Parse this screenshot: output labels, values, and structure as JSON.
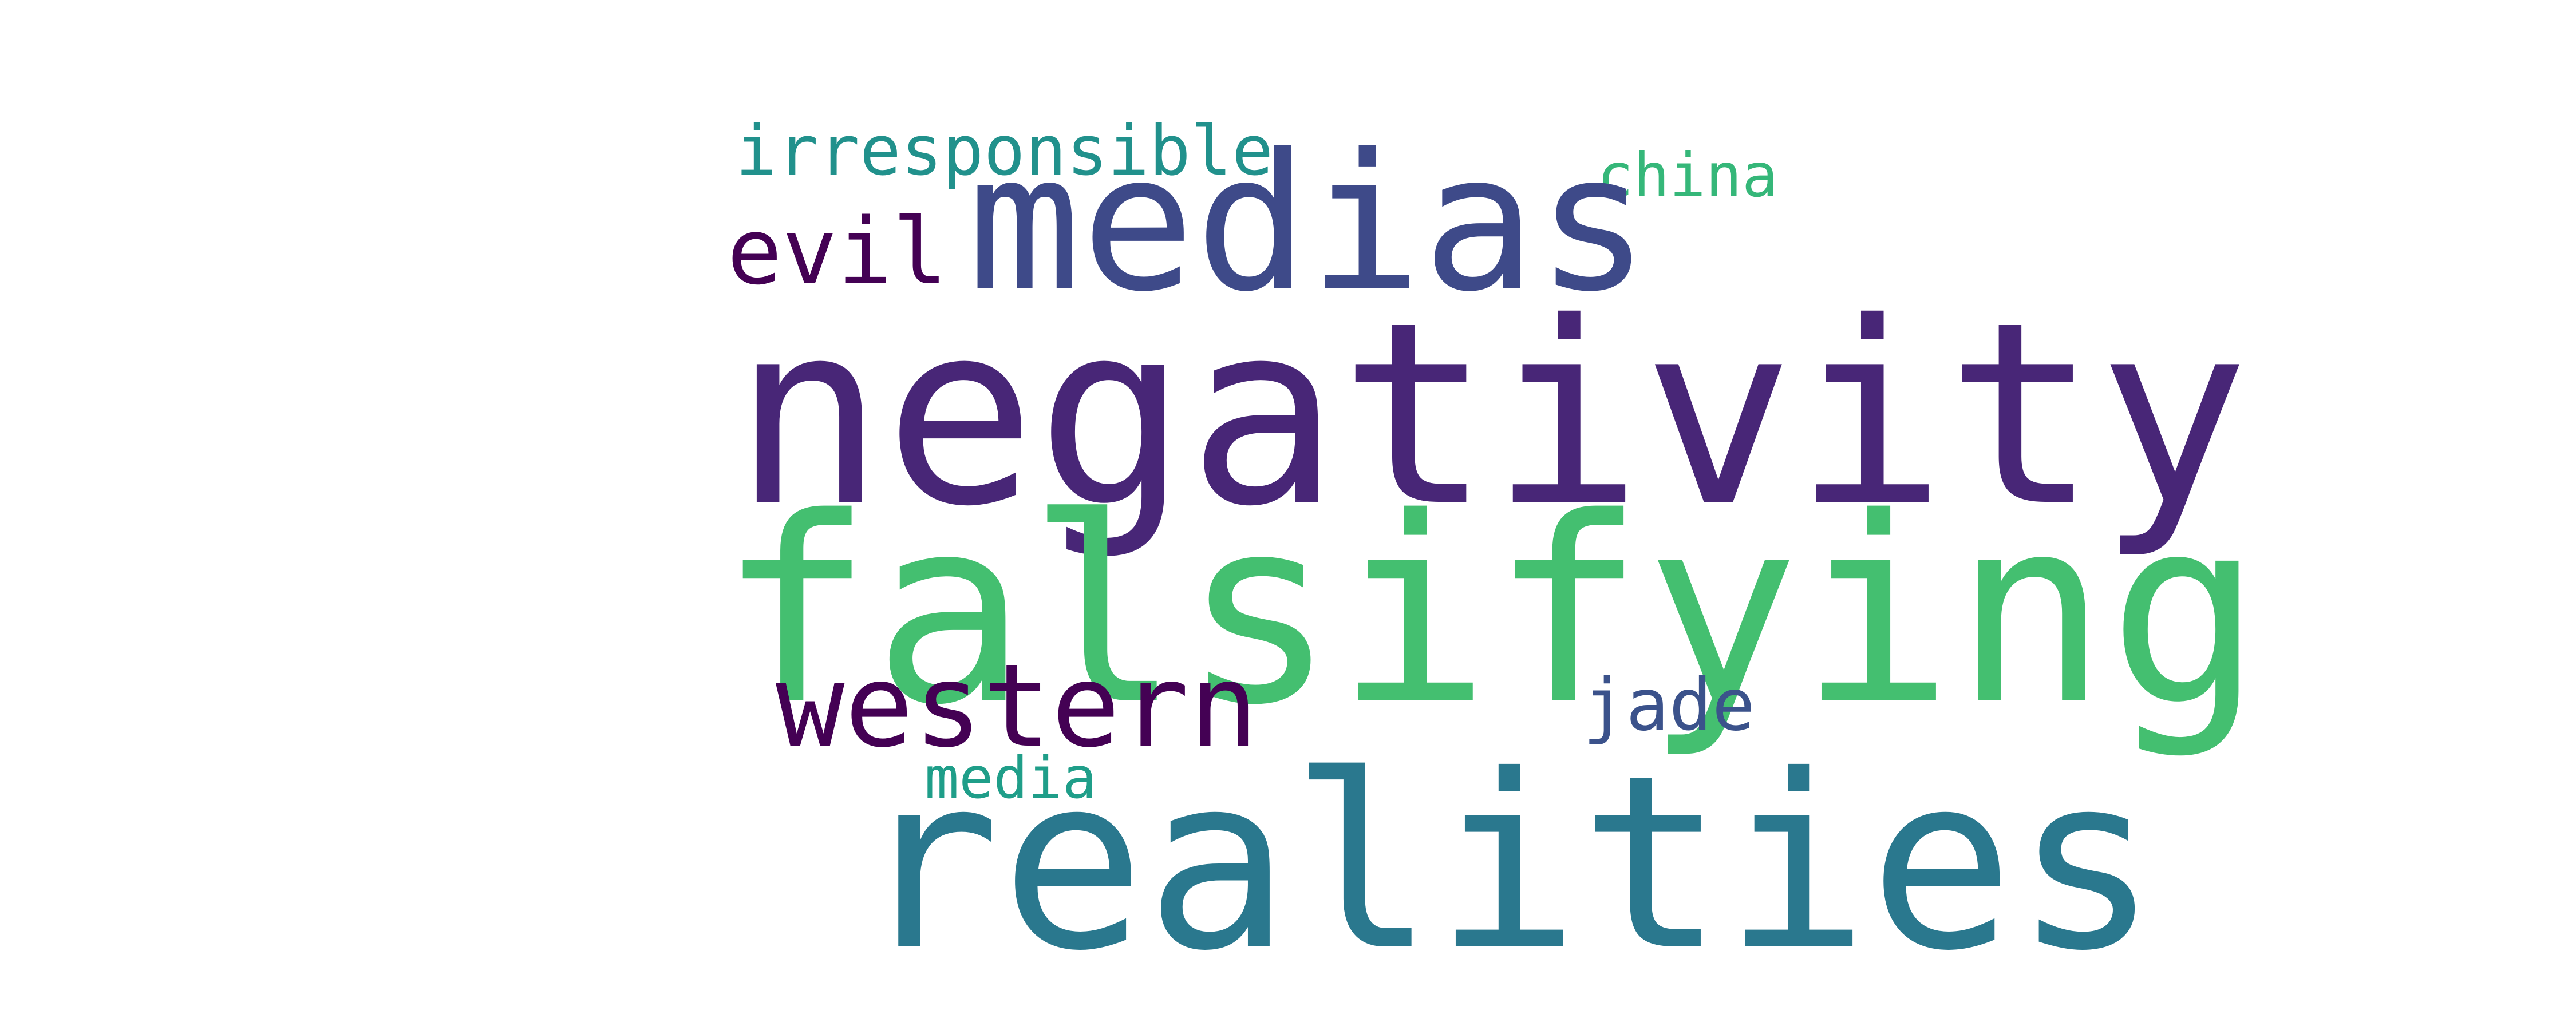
{
  "words": {
    "negativity": {
      "text": "negativity",
      "color": "#482677"
    },
    "falsifying": {
      "text": "falsifying",
      "color": "#44bf70"
    },
    "realities": {
      "text": "realities",
      "color": "#2a788e"
    },
    "medias": {
      "text": "medias",
      "color": "#3e4a89"
    },
    "western": {
      "text": "western",
      "color": "#440154"
    },
    "evil": {
      "text": "evil",
      "color": "#440154"
    },
    "irresponsible": {
      "text": "irresponsible",
      "color": "#21918c"
    },
    "china": {
      "text": "china",
      "color": "#35b779"
    },
    "jade": {
      "text": "jade",
      "color": "#3b528b"
    },
    "media": {
      "text": "media",
      "color": "#1f9e89"
    }
  }
}
